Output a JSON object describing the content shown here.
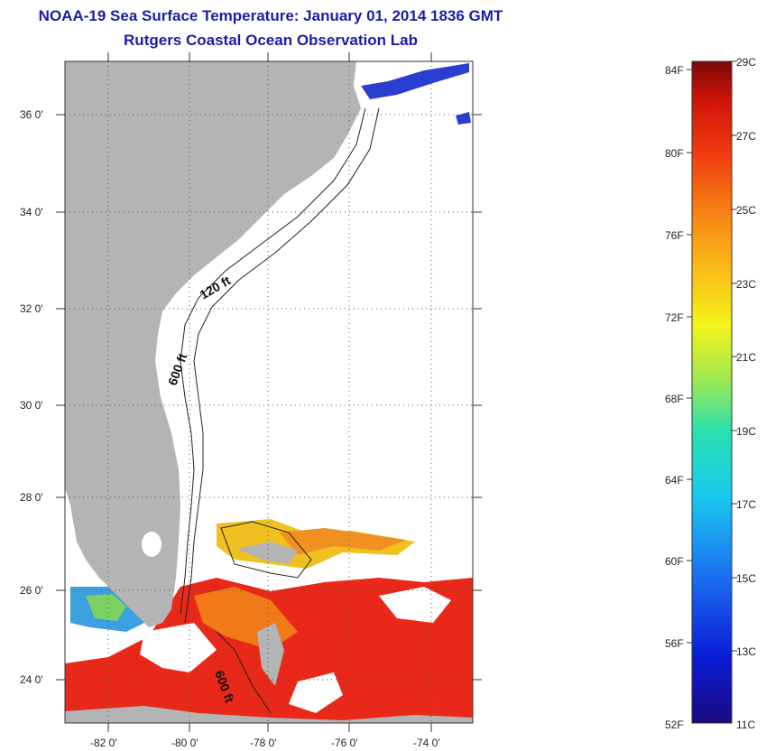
{
  "title": {
    "line1": "NOAA-19 Sea Surface Temperature:  January 01, 2014 1836 GMT",
    "line2": "Rutgers Coastal Ocean Observation Lab"
  },
  "map": {
    "lat_labels": [
      "36 0'",
      "34 0'",
      "32 0'",
      "30 0'",
      "28 0'",
      "26 0'",
      "24 0'"
    ],
    "lon_labels": [
      "-82 0'",
      "-80 0'",
      "-78 0'",
      "-76 0'",
      "-74 0'"
    ],
    "contour_labels": [
      "120 ft",
      "600 ft",
      "600 ft"
    ],
    "colors": {
      "land": "#b4b4b4",
      "cloud": "#ffffff",
      "warm_water": "#e8291a",
      "mid_water": "#f07a18",
      "yellow_water": "#f0c020",
      "cool_water": "#2a3fd0"
    }
  },
  "colorbar": {
    "fahrenheit": [
      "84F",
      "80F",
      "76F",
      "72F",
      "68F",
      "64F",
      "60F",
      "56F",
      "52F"
    ],
    "celsius": [
      "29C",
      "27C",
      "25C",
      "23C",
      "21C",
      "19C",
      "17C",
      "15C",
      "13C",
      "11C"
    ]
  }
}
